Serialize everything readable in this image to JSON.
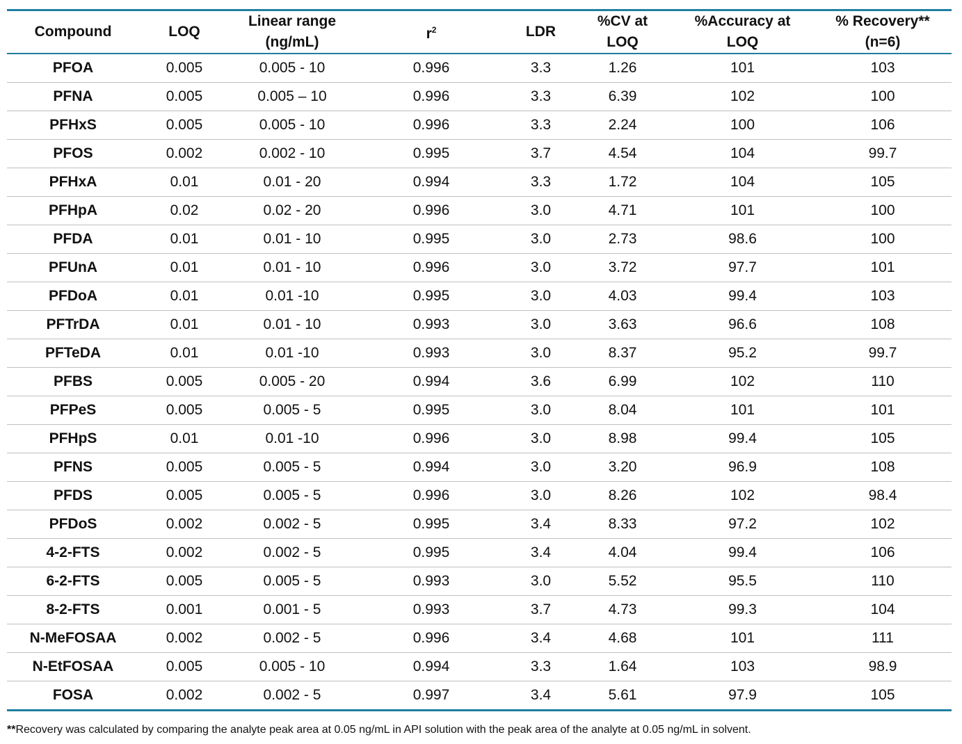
{
  "columns": [
    {
      "line1": "Compound",
      "line2": ""
    },
    {
      "line1": "LOQ",
      "line2": ""
    },
    {
      "line1": "Linear range",
      "line2": "(ng/mL)"
    },
    {
      "line1": "r",
      "line2": "",
      "sup": "2"
    },
    {
      "line1": "LDR",
      "line2": ""
    },
    {
      "line1": "%CV at",
      "line2": "LOQ"
    },
    {
      "line1": "%Accuracy at",
      "line2": "LOQ"
    },
    {
      "line1": "% Recovery**",
      "line2": "(n=6)"
    }
  ],
  "rows": [
    [
      "PFOA",
      "0.005",
      "0.005 - 10",
      "0.996",
      "3.3",
      "1.26",
      "101",
      "103"
    ],
    [
      "PFNA",
      "0.005",
      "0.005 – 10",
      "0.996",
      "3.3",
      "6.39",
      "102",
      "100"
    ],
    [
      "PFHxS",
      "0.005",
      "0.005 - 10",
      "0.996",
      "3.3",
      "2.24",
      "100",
      "106"
    ],
    [
      "PFOS",
      "0.002",
      "0.002 - 10",
      "0.995",
      "3.7",
      "4.54",
      "104",
      "99.7"
    ],
    [
      "PFHxA",
      "0.01",
      "0.01 - 20",
      "0.994",
      "3.3",
      "1.72",
      "104",
      "105"
    ],
    [
      "PFHpA",
      "0.02",
      "0.02 - 20",
      "0.996",
      "3.0",
      "4.71",
      "101",
      "100"
    ],
    [
      "PFDA",
      "0.01",
      "0.01 - 10",
      "0.995",
      "3.0",
      "2.73",
      "98.6",
      "100"
    ],
    [
      "PFUnA",
      "0.01",
      "0.01 - 10",
      "0.996",
      "3.0",
      "3.72",
      "97.7",
      "101"
    ],
    [
      "PFDoA",
      "0.01",
      "0.01 -10",
      "0.995",
      "3.0",
      "4.03",
      "99.4",
      "103"
    ],
    [
      "PFTrDA",
      "0.01",
      "0.01 - 10",
      "0.993",
      "3.0",
      "3.63",
      "96.6",
      "108"
    ],
    [
      "PFTeDA",
      "0.01",
      "0.01 -10",
      "0.993",
      "3.0",
      "8.37",
      "95.2",
      "99.7"
    ],
    [
      "PFBS",
      "0.005",
      "0.005 - 20",
      "0.994",
      "3.6",
      "6.99",
      "102",
      "110"
    ],
    [
      "PFPeS",
      "0.005",
      "0.005 - 5",
      "0.995",
      "3.0",
      "8.04",
      "101",
      "101"
    ],
    [
      "PFHpS",
      "0.01",
      "0.01 -10",
      "0.996",
      "3.0",
      "8.98",
      "99.4",
      "105"
    ],
    [
      "PFNS",
      "0.005",
      "0.005 - 5",
      "0.994",
      "3.0",
      "3.20",
      "96.9",
      "108"
    ],
    [
      "PFDS",
      "0.005",
      "0.005 - 5",
      "0.996",
      "3.0",
      "8.26",
      "102",
      "98.4"
    ],
    [
      "PFDoS",
      "0.002",
      "0.002 - 5",
      "0.995",
      "3.4",
      "8.33",
      "97.2",
      "102"
    ],
    [
      "4-2-FTS",
      "0.002",
      "0.002 - 5",
      "0.995",
      "3.4",
      "4.04",
      "99.4",
      "106"
    ],
    [
      "6-2-FTS",
      "0.005",
      "0.005 - 5",
      "0.993",
      "3.0",
      "5.52",
      "95.5",
      "110"
    ],
    [
      "8-2-FTS",
      "0.001",
      "0.001 - 5",
      "0.993",
      "3.7",
      "4.73",
      "99.3",
      "104"
    ],
    [
      "N-MeFOSAA",
      "0.002",
      "0.002 - 5",
      "0.996",
      "3.4",
      "4.68",
      "101",
      "111"
    ],
    [
      "N-EtFOSAA",
      "0.005",
      "0.005 - 10",
      "0.994",
      "3.3",
      "1.64",
      "103",
      "98.9"
    ],
    [
      "FOSA",
      "0.002",
      "0.002 - 5",
      "0.997",
      "3.4",
      "5.61",
      "97.9",
      "105"
    ]
  ],
  "footnote": {
    "marker": "**",
    "text": "Recovery was calculated by comparing the analyte peak area at 0.05 ng/mL in API solution with the peak area of the analyte at 0.05 ng/mL in solvent."
  },
  "colors": {
    "rule": "#1f7fa0",
    "row_divider": "#bfbfbf"
  }
}
